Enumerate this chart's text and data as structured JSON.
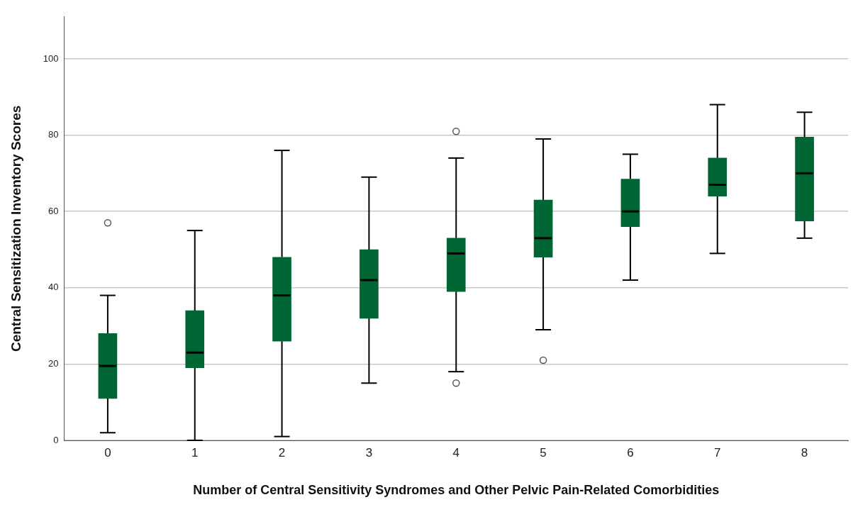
{
  "chart_data": {
    "type": "box",
    "xlabel": "Number of Central Sensitivity Syndromes and Other Pelvic Pain-Related Comorbidities",
    "ylabel": "Central Sensitization Inventory Scores",
    "categories": [
      "0",
      "1",
      "2",
      "3",
      "4",
      "5",
      "6",
      "7",
      "8"
    ],
    "color": "#006633",
    "boxes": [
      {
        "low": 2,
        "q1": 11,
        "median": 19.5,
        "q3": 28,
        "high": 38,
        "outliers": [
          57
        ]
      },
      {
        "low": 0,
        "q1": 19,
        "median": 23,
        "q3": 34,
        "high": 55
      },
      {
        "low": 1,
        "q1": 26,
        "median": 38,
        "q3": 48,
        "high": 76
      },
      {
        "low": 15,
        "q1": 32,
        "median": 42,
        "q3": 50,
        "high": 69
      },
      {
        "low": 18,
        "q1": 39,
        "median": 49,
        "q3": 53,
        "high": 74,
        "outliers": [
          81,
          15
        ]
      },
      {
        "low": 29,
        "q1": 48,
        "median": 53,
        "q3": 63,
        "high": 79,
        "outliers": [
          21
        ]
      },
      {
        "low": 42,
        "q1": 56,
        "median": 60,
        "q3": 68.5,
        "high": 75
      },
      {
        "low": 49,
        "q1": 64,
        "median": 67,
        "q3": 74,
        "high": 88
      },
      {
        "low": 53,
        "q1": 57.5,
        "median": 70,
        "q3": 79.5,
        "high": 86
      }
    ],
    "ylim": [
      0,
      111
    ],
    "yticks": [
      0,
      20,
      40,
      60,
      80,
      100
    ],
    "grid": "y"
  }
}
